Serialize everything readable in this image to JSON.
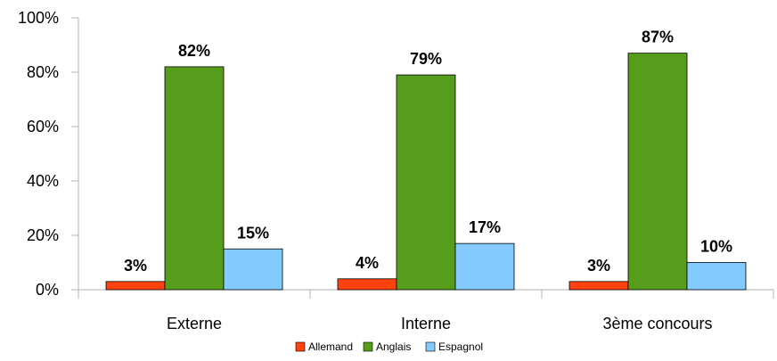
{
  "chart_data": {
    "type": "bar",
    "categories": [
      "Externe",
      "Interne",
      "3ème concours"
    ],
    "series": [
      {
        "name": "Allemand",
        "values": [
          3,
          4,
          3
        ],
        "labels": [
          "3%",
          "4%",
          "3%"
        ],
        "color": "#ff420e"
      },
      {
        "name": "Anglais",
        "values": [
          82,
          79,
          87
        ],
        "labels": [
          "82%",
          "79%",
          "87%"
        ],
        "color": "#579d1c"
      },
      {
        "name": "Espagnol",
        "values": [
          15,
          17,
          10
        ],
        "labels": [
          "15%",
          "17%",
          "10%"
        ],
        "color": "#83caff"
      }
    ],
    "y_ticks": [
      "0%",
      "20%",
      "40%",
      "60%",
      "80%",
      "100%"
    ],
    "ylim": [
      0,
      100
    ],
    "grid": false,
    "legend_position": "bottom-center"
  }
}
